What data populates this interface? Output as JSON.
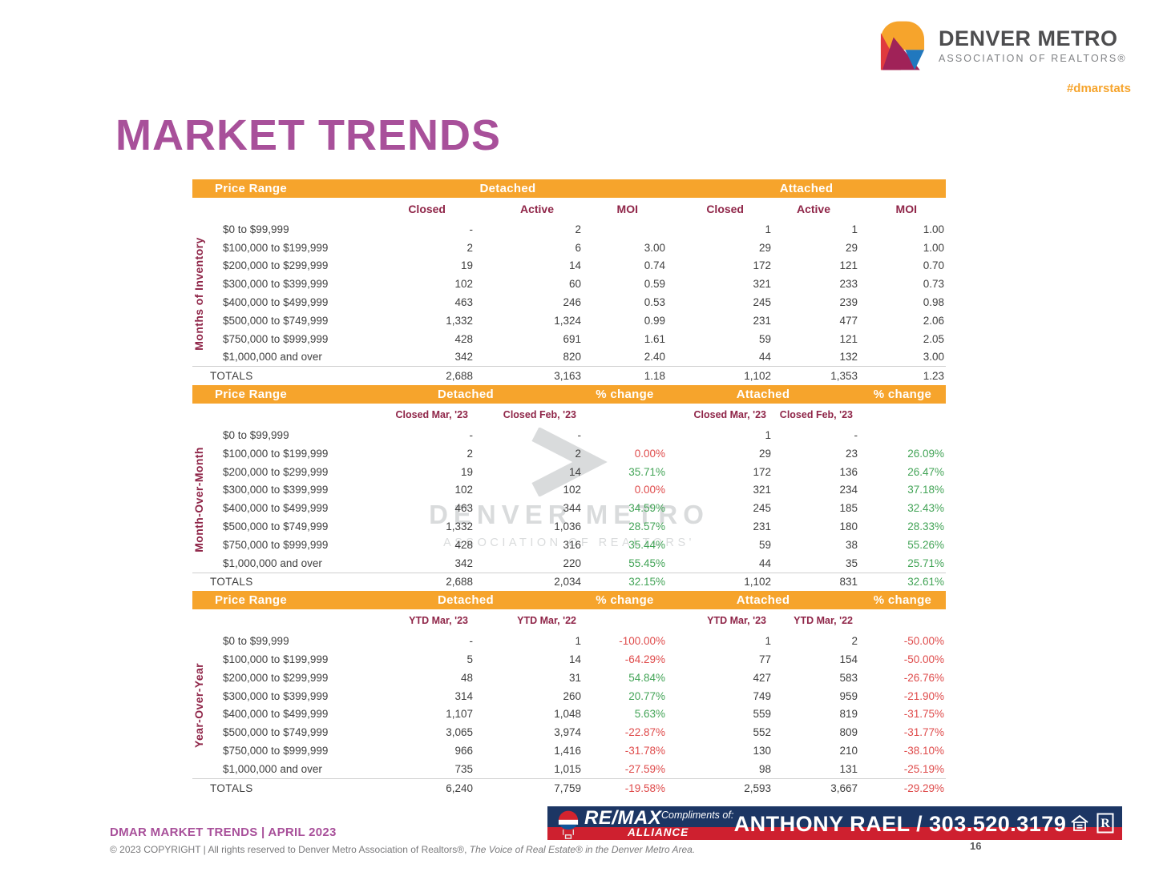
{
  "brand": {
    "name": "DENVER METRO",
    "subtitle": "ASSOCIATION OF REALTORS®",
    "hashtag": "#dmarstats"
  },
  "page": {
    "title": "MARKET TRENDS",
    "number": "16"
  },
  "colors": {
    "orange": "#F6A42C",
    "maroon": "#8F2548",
    "purple": "#A8509A",
    "green": "#43A457",
    "red": "#DF4B4B",
    "banner_navy": "#1C3664",
    "banner_red": "#CE202F"
  },
  "watermark": {
    "line1": "DENVER METRO",
    "line2": "ASSOCIATION OF REALTORS'"
  },
  "tables": [
    {
      "section_label": "Months of Inventory",
      "bar": {
        "price_range": "Price Range",
        "detached": "Detached",
        "attached": "Attached"
      },
      "subheaders": [
        "Closed",
        "Active",
        "MOI",
        "Closed",
        "Active",
        "MOI"
      ],
      "pct_columns": [],
      "rows": [
        {
          "label": "$0 to $99,999",
          "values": [
            "-",
            "2",
            "",
            "1",
            "1",
            "1.00"
          ]
        },
        {
          "label": "$100,000 to $199,999",
          "values": [
            "2",
            "6",
            "3.00",
            "29",
            "29",
            "1.00"
          ]
        },
        {
          "label": "$200,000 to $299,999",
          "values": [
            "19",
            "14",
            "0.74",
            "172",
            "121",
            "0.70"
          ]
        },
        {
          "label": "$300,000 to $399,999",
          "values": [
            "102",
            "60",
            "0.59",
            "321",
            "233",
            "0.73"
          ]
        },
        {
          "label": "$400,000 to $499,999",
          "values": [
            "463",
            "246",
            "0.53",
            "245",
            "239",
            "0.98"
          ]
        },
        {
          "label": "$500,000 to $749,999",
          "values": [
            "1,332",
            "1,324",
            "0.99",
            "231",
            "477",
            "2.06"
          ]
        },
        {
          "label": "$750,000 to $999,999",
          "values": [
            "428",
            "691",
            "1.61",
            "59",
            "121",
            "2.05"
          ]
        },
        {
          "label": "$1,000,000 and over",
          "values": [
            "342",
            "820",
            "2.40",
            "44",
            "132",
            "3.00"
          ]
        }
      ],
      "totals": {
        "label": "TOTALS",
        "values": [
          "2,688",
          "3,163",
          "1.18",
          "1,102",
          "1,353",
          "1.23"
        ]
      }
    },
    {
      "section_label": "Month-Over-Month",
      "bar": {
        "price_range": "Price Range",
        "detached": "Detached",
        "pct1": "% change",
        "attached": "Attached",
        "pct2": "% change"
      },
      "subheaders": [
        "Closed Mar, '23",
        "Closed Feb, '23",
        "",
        "Closed Mar, '23",
        "Closed Feb, '23",
        ""
      ],
      "pct_columns": [
        2,
        5
      ],
      "rows": [
        {
          "label": "$0 to $99,999",
          "values": [
            "-",
            "-",
            "",
            "1",
            "-",
            ""
          ]
        },
        {
          "label": "$100,000 to $199,999",
          "values": [
            "2",
            "2",
            "0.00%",
            "29",
            "23",
            "26.09%"
          ]
        },
        {
          "label": "$200,000 to $299,999",
          "values": [
            "19",
            "14",
            "35.71%",
            "172",
            "136",
            "26.47%"
          ]
        },
        {
          "label": "$300,000 to $399,999",
          "values": [
            "102",
            "102",
            "0.00%",
            "321",
            "234",
            "37.18%"
          ]
        },
        {
          "label": "$400,000 to $499,999",
          "values": [
            "463",
            "344",
            "34.59%",
            "245",
            "185",
            "32.43%"
          ]
        },
        {
          "label": "$500,000 to $749,999",
          "values": [
            "1,332",
            "1,036",
            "28.57%",
            "231",
            "180",
            "28.33%"
          ]
        },
        {
          "label": "$750,000 to $999,999",
          "values": [
            "428",
            "316",
            "35.44%",
            "59",
            "38",
            "55.26%"
          ]
        },
        {
          "label": "$1,000,000 and over",
          "values": [
            "342",
            "220",
            "55.45%",
            "44",
            "35",
            "25.71%"
          ]
        }
      ],
      "totals": {
        "label": "TOTALS",
        "values": [
          "2,688",
          "2,034",
          "32.15%",
          "1,102",
          "831",
          "32.61%"
        ]
      }
    },
    {
      "section_label": "Year-Over-Year",
      "bar": {
        "price_range": "Price Range",
        "detached": "Detached",
        "pct1": "% change",
        "attached": "Attached",
        "pct2": "% change"
      },
      "subheaders": [
        "YTD Mar, '23",
        "YTD Mar, '22",
        "",
        "YTD Mar, '23",
        "YTD Mar, '22",
        ""
      ],
      "pct_columns": [
        2,
        5
      ],
      "rows": [
        {
          "label": "$0 to $99,999",
          "values": [
            "-",
            "1",
            "-100.00%",
            "1",
            "2",
            "-50.00%"
          ]
        },
        {
          "label": "$100,000 to $199,999",
          "values": [
            "5",
            "14",
            "-64.29%",
            "77",
            "154",
            "-50.00%"
          ]
        },
        {
          "label": "$200,000 to $299,999",
          "values": [
            "48",
            "31",
            "54.84%",
            "427",
            "583",
            "-26.76%"
          ]
        },
        {
          "label": "$300,000 to $399,999",
          "values": [
            "314",
            "260",
            "20.77%",
            "749",
            "959",
            "-21.90%"
          ]
        },
        {
          "label": "$400,000 to $499,999",
          "values": [
            "1,107",
            "1,048",
            "5.63%",
            "559",
            "819",
            "-31.75%"
          ]
        },
        {
          "label": "$500,000 to $749,999",
          "values": [
            "3,065",
            "3,974",
            "-22.87%",
            "552",
            "809",
            "-31.77%"
          ]
        },
        {
          "label": "$750,000 to $999,999",
          "values": [
            "966",
            "1,416",
            "-31.78%",
            "130",
            "210",
            "-38.10%"
          ]
        },
        {
          "label": "$1,000,000 and over",
          "values": [
            "735",
            "1,015",
            "-27.59%",
            "98",
            "131",
            "-25.19%"
          ]
        }
      ],
      "totals": {
        "label": "TOTALS",
        "values": [
          "6,240",
          "7,759",
          "-19.58%",
          "2,593",
          "3,667",
          "-29.29%"
        ]
      }
    }
  ],
  "footer": {
    "report_title": "DMAR MARKET TRENDS | APRIL 2023",
    "copyright_prefix": "© 2023 COPYRIGHT | All rights reserved to Denver Metro Association of Realtors®, ",
    "copyright_italic": "The Voice of Real Estate® in the Denver Metro Area."
  },
  "banner": {
    "remax_name": "RE/MAX",
    "remax_office": "ALLIANCE",
    "compliments": "Compliments of:",
    "agent": "ANTHONY RAEL / 303.520.3179"
  }
}
